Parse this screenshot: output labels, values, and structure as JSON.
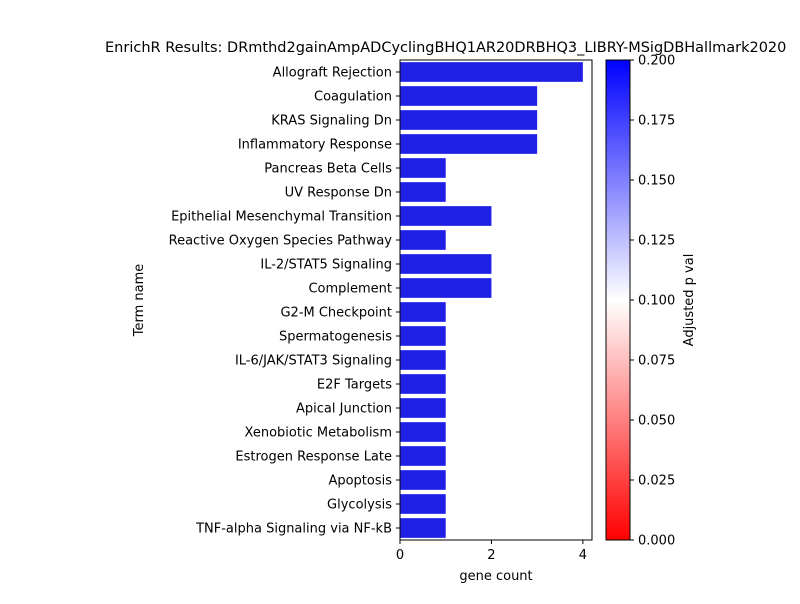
{
  "chart_data": {
    "type": "bar",
    "orientation": "horizontal",
    "title": "EnrichR Results: DRmthd2gainAmpADCyclingBHQ1AR20DRBHQ3_LIBRY-MSigDBHallmark2020",
    "xlabel": "gene count",
    "ylabel": "Term name",
    "xlim": [
      0,
      4.2
    ],
    "x_ticks": [
      "0",
      "2",
      "4"
    ],
    "categories": [
      "Allograft Rejection",
      "Coagulation",
      "KRAS Signaling Dn",
      "Inflammatory Response",
      "Pancreas Beta Cells",
      "UV Response Dn",
      "Epithelial Mesenchymal Transition",
      "Reactive Oxygen Species Pathway",
      "IL-2/STAT5 Signaling",
      "Complement",
      "G2-M Checkpoint",
      "Spermatogenesis",
      "IL-6/JAK/STAT3 Signaling",
      "E2F Targets",
      "Apical Junction",
      "Xenobiotic Metabolism",
      "Estrogen Response Late",
      "Apoptosis",
      "Glycolysis",
      "TNF-alpha Signaling via NF-kB"
    ],
    "values": [
      4,
      3,
      3,
      3,
      1,
      1,
      2,
      1,
      2,
      2,
      1,
      1,
      1,
      1,
      1,
      1,
      1,
      1,
      1,
      1
    ],
    "bar_color": "#1f1fe6",
    "colorbar": {
      "label": "Adjusted p val",
      "range": [
        0.0,
        0.2
      ],
      "ticks": [
        "0.000",
        "0.025",
        "0.050",
        "0.075",
        "0.100",
        "0.125",
        "0.150",
        "0.175",
        "0.200"
      ],
      "colors": [
        "#ff0000",
        "#ffffff",
        "#0000ff"
      ]
    },
    "grid": false,
    "legend": "colorbar-right"
  }
}
